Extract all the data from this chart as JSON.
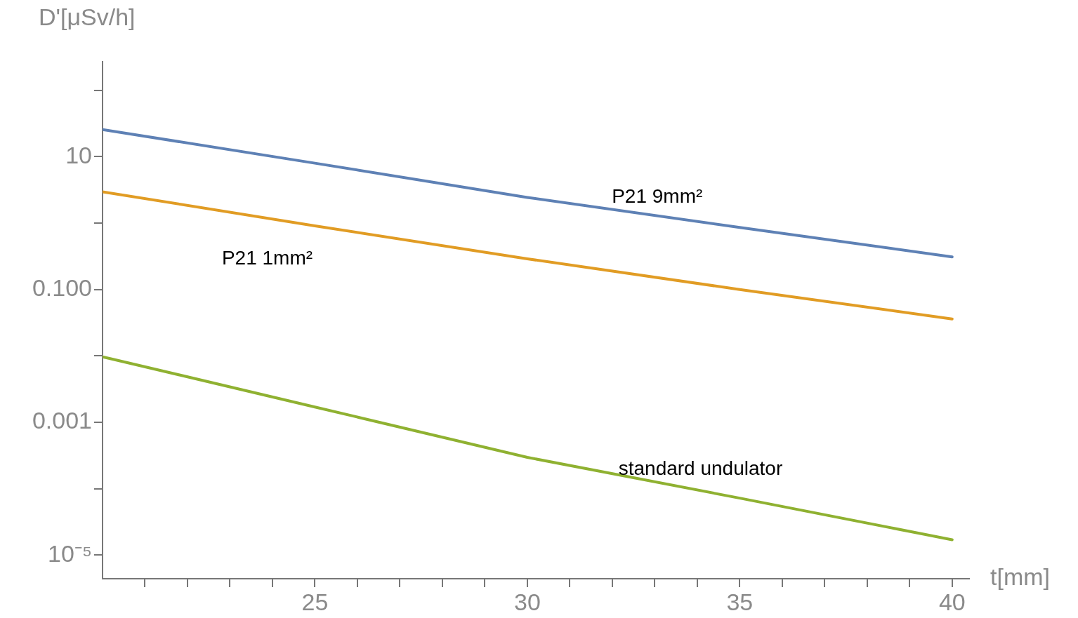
{
  "chart_data": {
    "type": "line",
    "xlabel": "t[mm]",
    "ylabel": "D'[μSv/h]",
    "log": "y",
    "grid": false,
    "legend": false,
    "marker": "none",
    "line_style": "solid",
    "x": [
      20,
      25,
      30,
      35,
      40
    ],
    "series": [
      {
        "name": "P21 9mm²",
        "color": "#5e81b5",
        "values": [
          25.7,
          8.0,
          2.44,
          0.86,
          0.31
        ]
      },
      {
        "name": "P21 1mm²",
        "color": "#e19c24",
        "values": [
          2.97,
          0.91,
          0.29,
          0.1,
          0.036
        ]
      },
      {
        "name": "standard undulator",
        "color": "#8fb131",
        "values": [
          0.0097,
          0.0017,
          0.000296,
          7.2e-05,
          1.7e-05
        ]
      }
    ],
    "xlim": [
      20,
      40.4
    ],
    "ylim": [
      4.4e-06,
      270
    ],
    "xticks": [
      {
        "value": 21,
        "label": null
      },
      {
        "value": 22,
        "label": null
      },
      {
        "value": 23,
        "label": null
      },
      {
        "value": 24,
        "label": null
      },
      25,
      {
        "value": 26,
        "label": null
      },
      {
        "value": 27,
        "label": null
      },
      {
        "value": 28,
        "label": null
      },
      {
        "value": 29,
        "label": null
      },
      30,
      {
        "value": 31,
        "label": null
      },
      {
        "value": 32,
        "label": null
      },
      {
        "value": 33,
        "label": null
      },
      {
        "value": 34,
        "label": null
      },
      35,
      {
        "value": 36,
        "label": null
      },
      {
        "value": 37,
        "label": null
      },
      {
        "value": 38,
        "label": null
      },
      {
        "value": 39,
        "label": null
      },
      40
    ],
    "yticks": [
      {
        "value": 1e-05,
        "label": "10⁻⁵"
      },
      {
        "value": 0.0001,
        "label": null
      },
      {
        "value": 0.001,
        "label": "0.001"
      },
      {
        "value": 0.01,
        "label": null
      },
      {
        "value": 0.1,
        "label": "0.100"
      },
      {
        "value": 1,
        "label": null
      },
      10,
      {
        "value": 100,
        "label": null
      }
    ]
  }
}
